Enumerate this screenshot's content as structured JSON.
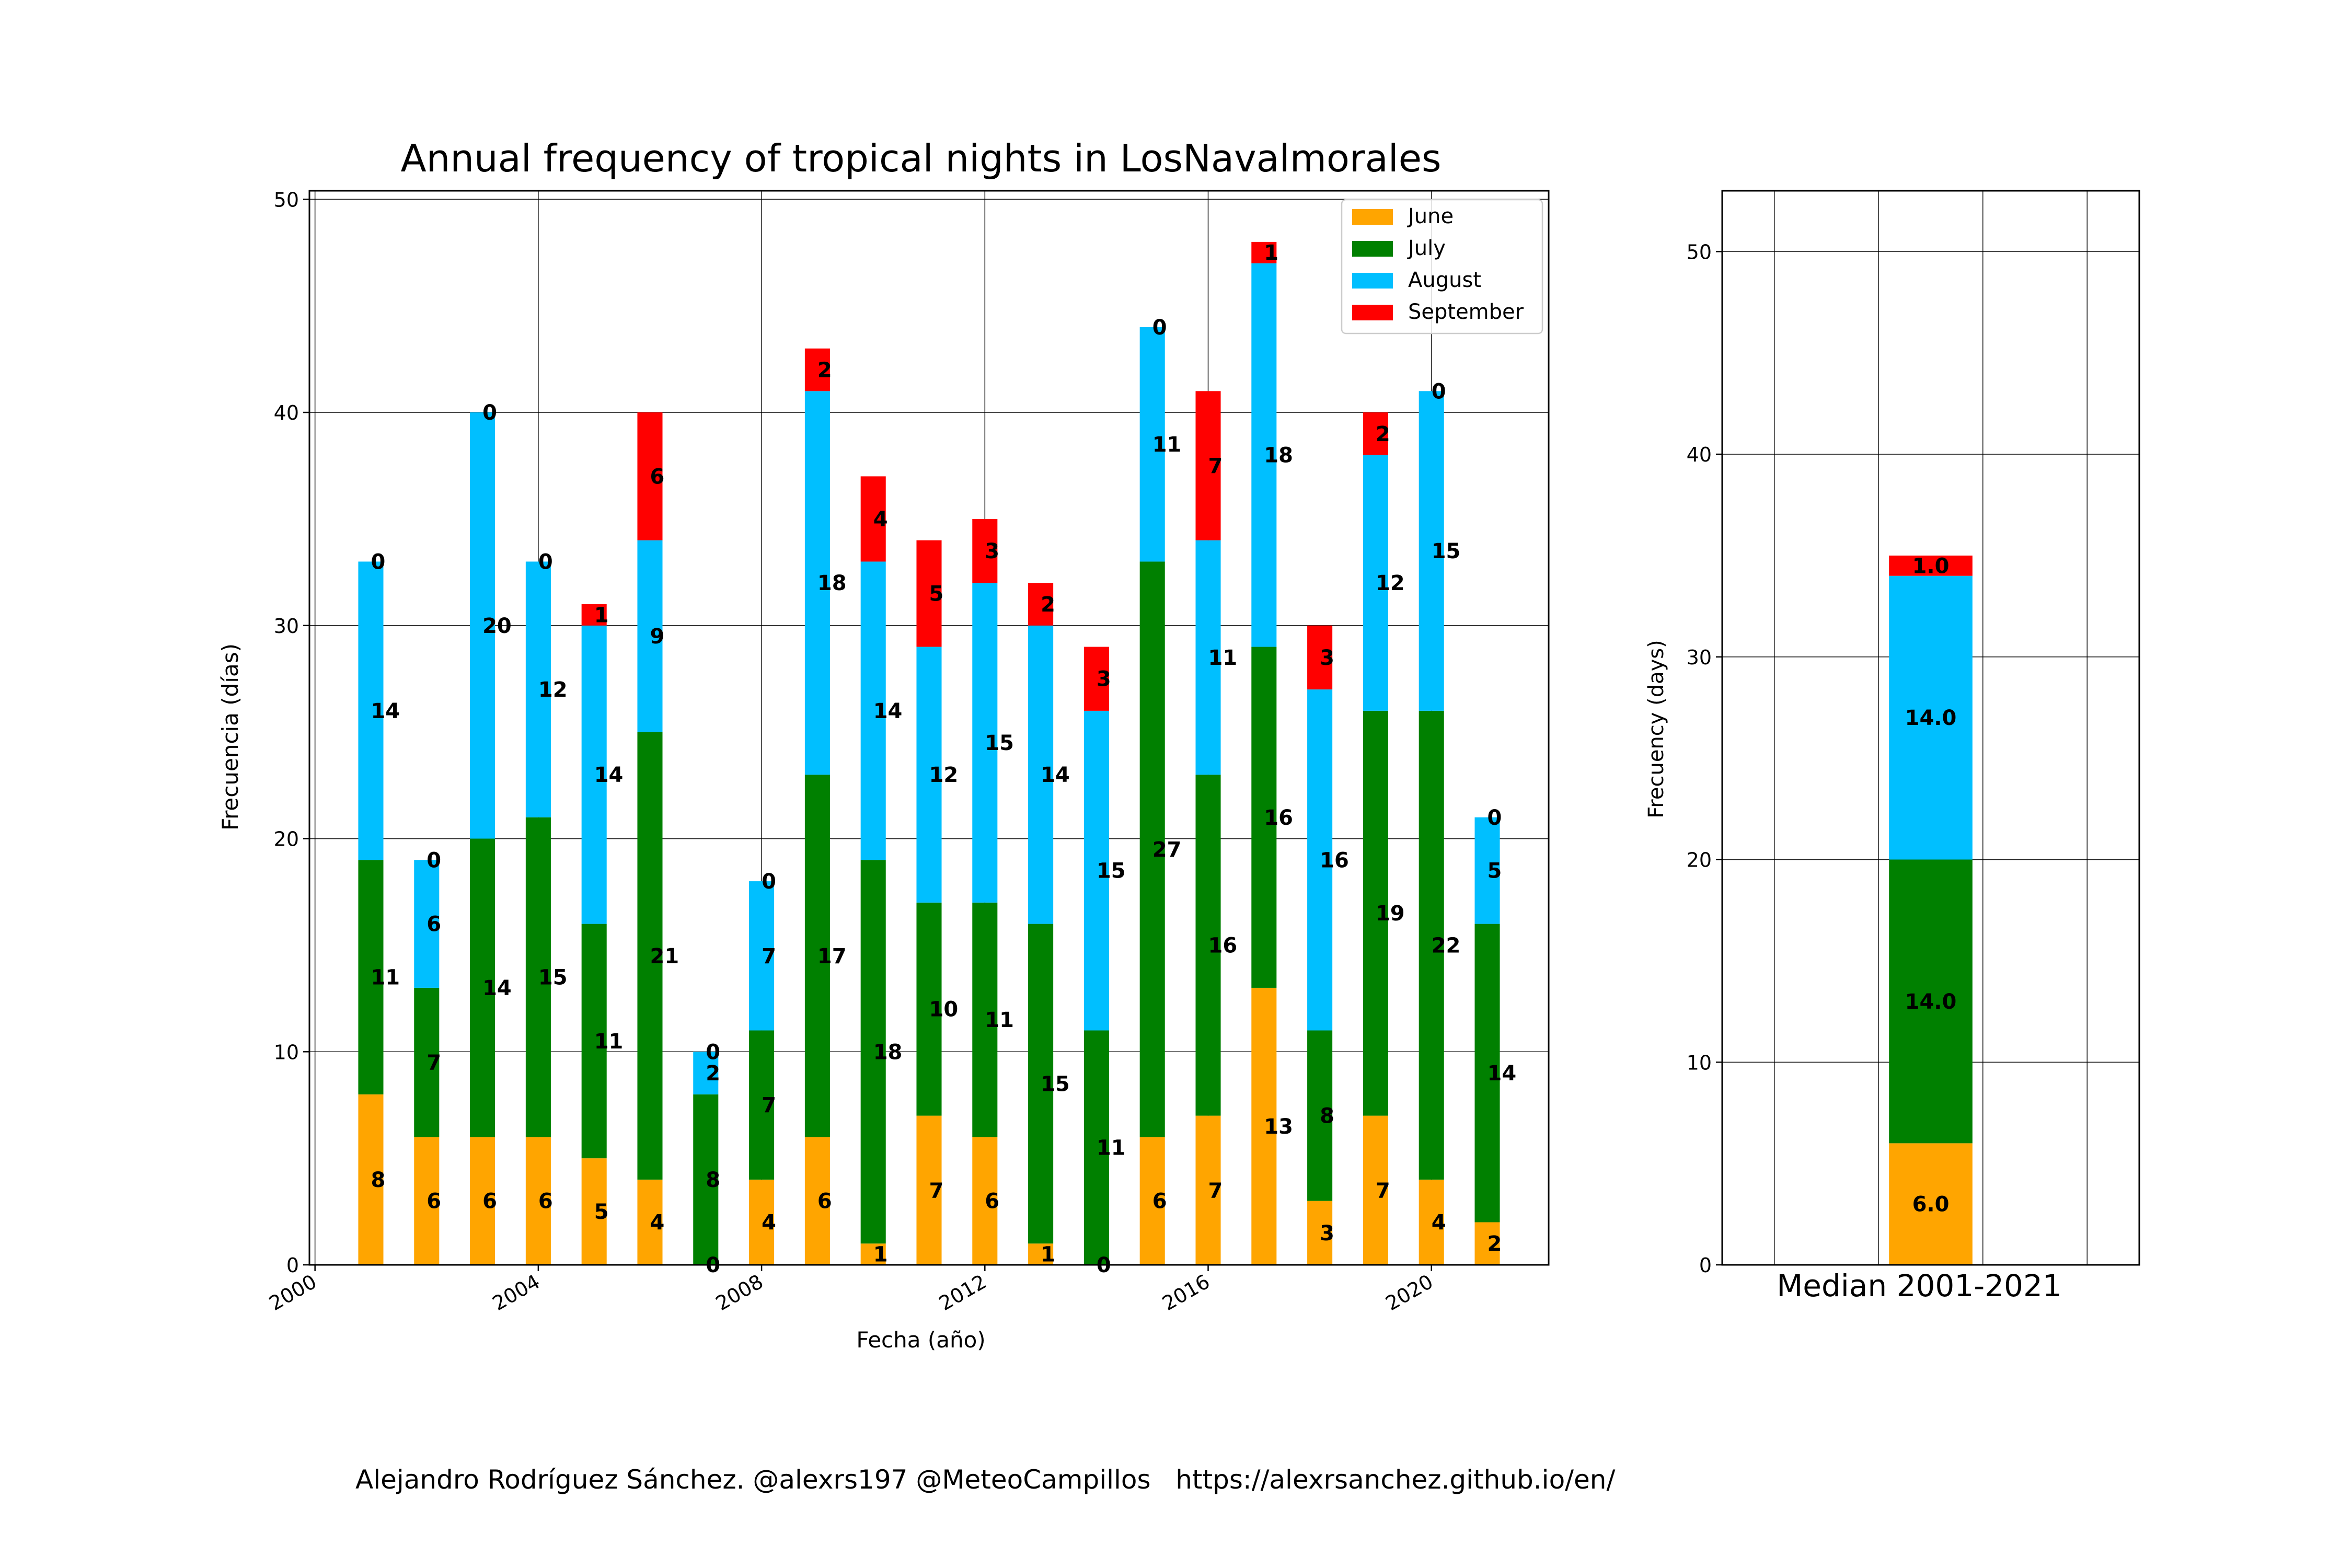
{
  "chart_data": [
    {
      "type": "bar",
      "stacked": true,
      "title": "Annual frequency of tropical nights in LosNavalmorales",
      "xlabel": "Fecha (año)",
      "ylabel": "Frecuencia (días)",
      "x": [
        2001,
        2002,
        2003,
        2004,
        2005,
        2006,
        2007,
        2008,
        2009,
        2010,
        2011,
        2012,
        2013,
        2014,
        2015,
        2016,
        2017,
        2018,
        2019,
        2020,
        2021
      ],
      "xticks": [
        2000,
        2004,
        2008,
        2012,
        2016,
        2020
      ],
      "xtick_labels": [
        "2000",
        "2004",
        "2008",
        "2012",
        "2016",
        "2020"
      ],
      "yticks": [
        0,
        10,
        20,
        30,
        40,
        50
      ],
      "ytick_labels": [
        "0",
        "10",
        "20",
        "30",
        "40",
        "50"
      ],
      "xlim": [
        1999.9,
        2022.1
      ],
      "ylim": [
        0,
        50.4
      ],
      "grid": true,
      "legend_position": "top-right",
      "series": [
        {
          "name": "June",
          "color": "#FFA500",
          "values": [
            8,
            6,
            6,
            6,
            5,
            4,
            0,
            4,
            6,
            1,
            7,
            6,
            1,
            0,
            6,
            7,
            13,
            3,
            7,
            4,
            2
          ]
        },
        {
          "name": "July",
          "color": "#008000",
          "values": [
            11,
            7,
            14,
            15,
            11,
            21,
            8,
            7,
            17,
            18,
            10,
            11,
            15,
            11,
            27,
            16,
            16,
            8,
            19,
            22,
            14
          ]
        },
        {
          "name": "August",
          "color": "#00BFFF",
          "values": [
            14,
            6,
            20,
            12,
            14,
            9,
            2,
            7,
            18,
            14,
            12,
            15,
            14,
            15,
            11,
            11,
            18,
            16,
            12,
            15,
            5
          ]
        },
        {
          "name": "September",
          "color": "#FF0000",
          "values": [
            0,
            0,
            0,
            0,
            1,
            6,
            0,
            0,
            2,
            4,
            5,
            3,
            2,
            3,
            0,
            7,
            1,
            3,
            2,
            0,
            0
          ]
        }
      ]
    },
    {
      "type": "bar",
      "stacked": true,
      "ylabel": "Frecuency (days)",
      "categories": [
        "Median 2001-2021"
      ],
      "yticks": [
        0,
        10,
        20,
        30,
        40,
        50
      ],
      "ytick_labels": [
        "0",
        "10",
        "20",
        "30",
        "40",
        "50"
      ],
      "ylim": [
        0,
        53
      ],
      "grid": true,
      "series": [
        {
          "name": "June",
          "color": "#FFA500",
          "values": [
            6.0
          ],
          "labels": [
            "6.0"
          ]
        },
        {
          "name": "July",
          "color": "#008000",
          "values": [
            14.0
          ],
          "labels": [
            "14.0"
          ]
        },
        {
          "name": "August",
          "color": "#00BFFF",
          "values": [
            14.0
          ],
          "labels": [
            "14.0"
          ]
        },
        {
          "name": "September",
          "color": "#FF0000",
          "values": [
            1.0
          ],
          "labels": [
            "1.0"
          ]
        }
      ]
    }
  ],
  "footer": {
    "credit": "Alejandro Rodríguez Sánchez. @alexrs197 @MeteoCampillos   https://alexrsanchez.github.io/en/"
  }
}
